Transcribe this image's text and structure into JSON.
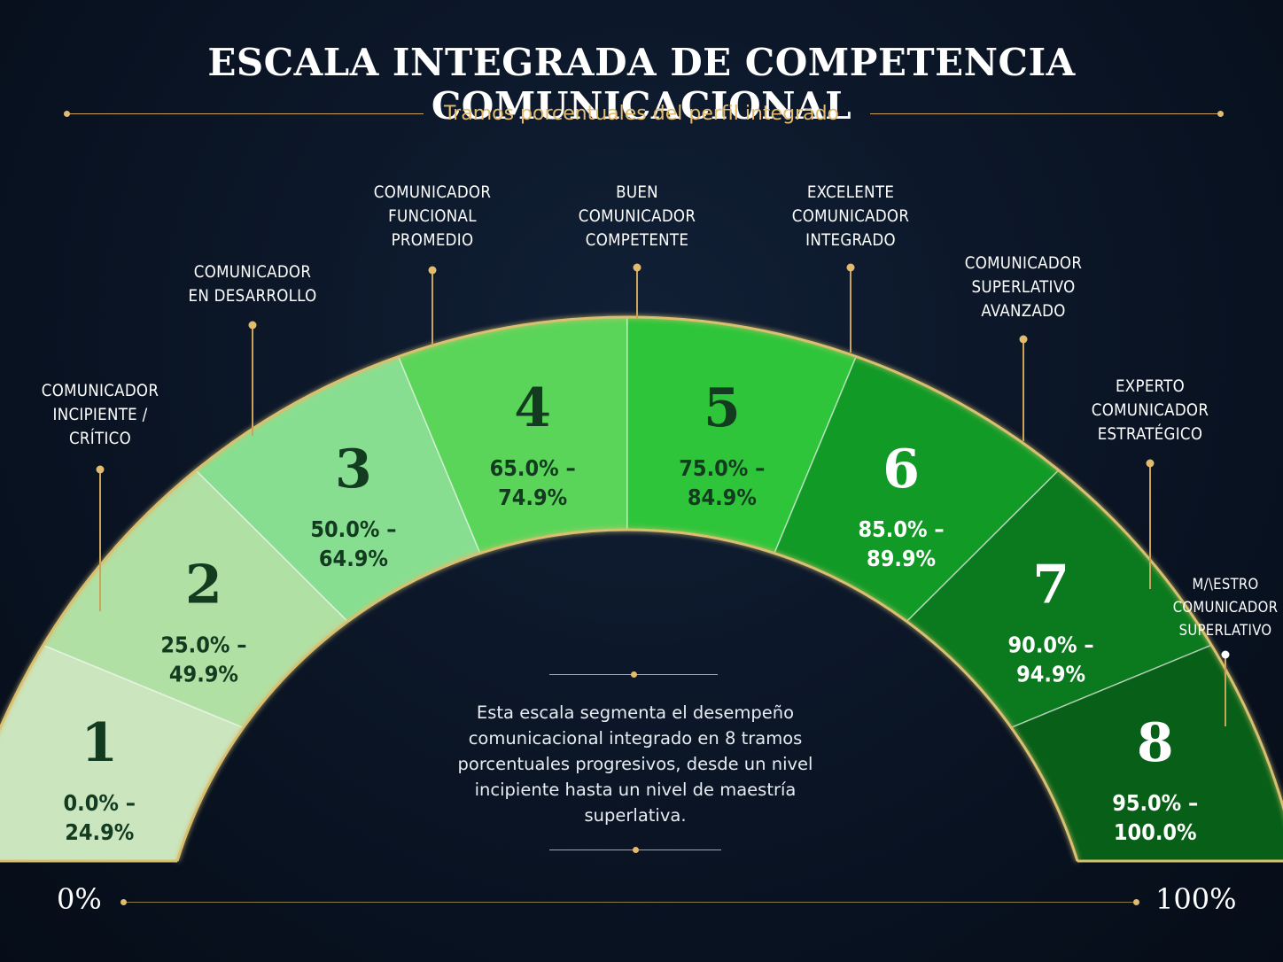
{
  "title": "ESCALA INTEGRADA DE COMPETENCIA COMUNICACIONAL",
  "subtitle": "Tramos porcentuales del perfil integrado",
  "description": "Esta escala segmenta el desempeño comunicacional integrado en 8 tramos porcentuales progresivos, desde un nivel incipiente hasta un nivel de maestría superlativa.",
  "description_lines": [
    "Esta escala segmenta el desempeño",
    "comunicacional integrado en 8 tramos",
    "porcentuales progresivos, desde un nivel",
    "incipiente hasta un nivel de maestría",
    "superlativa."
  ],
  "axis": {
    "start_label": "0%",
    "end_label": "100%"
  },
  "segments": [
    {
      "number": "1",
      "range_lines": [
        "0.0% –",
        "24.9%"
      ],
      "from": 0.0,
      "to": 24.9,
      "name_lines": [
        "COMUNICADOR",
        "INCIPIENTE /",
        "CRÍTICO"
      ],
      "color": "#cbe6bf",
      "text_color": "#123b20"
    },
    {
      "number": "2",
      "range_lines": [
        "25.0% –",
        "49.9%"
      ],
      "from": 25.0,
      "to": 49.9,
      "name_lines": [
        "COMUNICADOR",
        "EN DESARROLLO"
      ],
      "color": "#b1e0a4",
      "text_color": "#123b20"
    },
    {
      "number": "3",
      "range_lines": [
        "50.0% –",
        "64.9%"
      ],
      "from": 50.0,
      "to": 64.9,
      "name_lines": [
        "COMUNICADOR",
        "FUNCIONAL",
        "PROMEDIO"
      ],
      "color": "#88de90",
      "text_color": "#123b20"
    },
    {
      "number": "4",
      "range_lines": [
        "65.0% –",
        "74.9%"
      ],
      "from": 65.0,
      "to": 74.9,
      "name_lines": [
        "BUEN",
        "COMUNICADOR",
        "COMPETENTE"
      ],
      "color": "#5bd559",
      "text_color": "#123b20"
    },
    {
      "number": "5",
      "range_lines": [
        "75.0% –",
        "84.9%"
      ],
      "from": 75.0,
      "to": 84.9,
      "name_lines": [
        "EXCELENTE",
        "COMUNICADOR",
        "INTEGRADO"
      ],
      "color": "#2fc53a",
      "text_color": "#123b20"
    },
    {
      "number": "6",
      "range_lines": [
        "85.0% –",
        "89.9%"
      ],
      "from": 85.0,
      "to": 89.9,
      "name_lines": [
        "COMUNICADOR",
        "SUPERLATIVO",
        "AVANZADO"
      ],
      "color": "#129a27",
      "text_color": "#ffffff"
    },
    {
      "number": "7",
      "range_lines": [
        "90.0% –",
        "94.9%"
      ],
      "from": 90.0,
      "to": 94.9,
      "name_lines": [
        "EXPERTO",
        "COMUNICADOR",
        "ESTRATÉGICO"
      ],
      "color": "#0b7a1e",
      "text_color": "#ffffff"
    },
    {
      "number": "8",
      "range_lines": [
        "95.0% –",
        "100.0%"
      ],
      "from": 95.0,
      "to": 100.0,
      "name_lines": [
        "M/\\ESTRO",
        "COMUNICADOR",
        "SUPERLATIVO"
      ],
      "color": "#085f17",
      "text_color": "#ffffff"
    }
  ],
  "colors": {
    "background": "#0a1424",
    "accent_gold": "#e2bb6e",
    "outline": "#d8c070"
  }
}
